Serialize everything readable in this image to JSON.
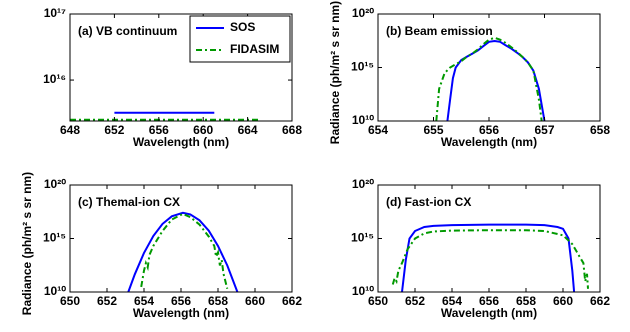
{
  "chart_data": [
    {
      "type": "line",
      "title": "(a) VB continuum",
      "log_y": true,
      "legend": "upper right",
      "xlabel": "Wavelength (nm)",
      "xlim": [
        648,
        668
      ],
      "xticks": [
        648,
        652,
        656,
        660,
        664,
        668
      ],
      "ylim": [
        2400000000000000.0,
        1e+17
      ],
      "yticks": [
        {
          "value": 1e+16,
          "label": "10¹⁶"
        },
        {
          "value": 1e+17,
          "label": "10¹⁷"
        }
      ],
      "series": [
        {
          "name": "SOS",
          "color": "#0000ff",
          "dash": "solid",
          "x": [
            652,
            661
          ],
          "values": [
            3200000000000000.0,
            3200000000000000.0
          ]
        },
        {
          "name": "FIDASIM",
          "color": "#009900",
          "dash": "dash-dot",
          "x": [
            648,
            665
          ],
          "values": [
            2500000000000000.0,
            2500000000000000.0
          ]
        }
      ]
    },
    {
      "type": "line",
      "title": "(b) Beam emission",
      "log_y": true,
      "xlabel": "Wavelength (nm)",
      "ylabel": "Radiance (ph/m² s sr nm)",
      "xlim": [
        654,
        658
      ],
      "xticks": [
        654,
        655,
        656,
        657,
        658
      ],
      "ylim": [
        10000000000.0,
        1e+20
      ],
      "yticks": [
        {
          "value": 10000000000.0,
          "label": "10¹⁰"
        },
        {
          "value": 1000000000000000.0,
          "label": "10¹⁵"
        },
        {
          "value": 1e+20,
          "label": "10²⁰"
        }
      ],
      "series": [
        {
          "color": "#0000ff",
          "dash": "solid",
          "x": [
            655.25,
            655.3,
            655.35,
            655.4,
            655.5,
            655.6,
            655.7,
            655.8,
            655.9,
            656.0,
            656.1,
            656.2,
            656.3,
            656.4,
            656.5,
            656.6,
            656.7,
            656.8,
            656.9,
            657.0
          ],
          "values": [
            10000000000.0,
            1000000000000.0,
            100000000000000.0,
            1000000000000000.0,
            5000000000000000.0,
            1e+16,
            2e+16,
            4e+16,
            1e+17,
            2.5e+17,
            3e+17,
            2.5e+17,
            1.2e+17,
            6e+16,
            2.5e+16,
            1e+16,
            3000000000000000.0,
            500000000000000.0,
            10000000000000.0,
            10000000000.0
          ]
        },
        {
          "color": "#009900",
          "dash": "dash-dot",
          "x": [
            655.05,
            655.1,
            655.2,
            655.3,
            655.4,
            655.5,
            655.6,
            655.7,
            655.8,
            655.9,
            656.0,
            656.1,
            656.2,
            656.3,
            656.4,
            656.5,
            656.6,
            656.7,
            656.8,
            656.9,
            656.95
          ],
          "values": [
            10000000000.0,
            10000000000000.0,
            300000000000000.0,
            1000000000000000.0,
            2000000000000000.0,
            4000000000000000.0,
            1e+16,
            2e+16,
            5e+16,
            1.5e+17,
            4e+17,
            6e+17,
            4e+17,
            2e+17,
            8e+16,
            3e+16,
            1e+16,
            3000000000000000.0,
            500000000000000.0,
            1000000000000.0,
            10000000000.0
          ]
        }
      ]
    },
    {
      "type": "line",
      "title": "(c) Themal-ion CX",
      "log_y": true,
      "xlabel": "Wavelength (nm)",
      "ylabel": "Radiance (ph/m² s sr nm)",
      "xlim": [
        650,
        662
      ],
      "xticks": [
        650,
        652,
        654,
        656,
        658,
        660,
        662
      ],
      "ylim": [
        10000000000.0,
        1e+20
      ],
      "yticks": [
        {
          "value": 10000000000.0,
          "label": "10¹⁰"
        },
        {
          "value": 1000000000000000.0,
          "label": "10¹⁵"
        },
        {
          "value": 1e+20,
          "label": "10²⁰"
        }
      ],
      "series": [
        {
          "color": "#0000ff",
          "dash": "solid",
          "x": [
            653.15,
            653.5,
            654,
            654.5,
            655,
            655.5,
            656.1,
            656.5,
            657,
            657.5,
            658,
            658.5,
            659.05
          ],
          "values": [
            10000000000.0,
            450000000000.0,
            45000000000000.0,
            1700000000000000.0,
            2.3e+16,
            1.2e+17,
            2.5e+17,
            1.8e+17,
            5e+16,
            5400000000000000.0,
            200000000000000.0,
            3000000000000.0,
            10000000000.0
          ]
        },
        {
          "color": "#009900",
          "dash": "dash-dot",
          "x": [
            653.85,
            654.0,
            654.1,
            654.2,
            654.3,
            654.5,
            655,
            655.5,
            656.1,
            656.5,
            657,
            657.5,
            657.8,
            657.9,
            658.0,
            658.1,
            658.2,
            658.3,
            658.5
          ],
          "values": [
            30000000000.0,
            1000000000000.0,
            5000000000000.0,
            2000000000000.0,
            30000000000000.0,
            200000000000000.0,
            5000000000000000.0,
            6e+16,
            2e+17,
            1e+17,
            2e+16,
            1500000000000000.0,
            200000000000000.0,
            20000000000000.0,
            50000000000000.0,
            3000000000000.0,
            10000000000000.0,
            500000000000.0,
            20000000000.0
          ]
        }
      ]
    },
    {
      "type": "line",
      "title": "(d) Fast-ion CX",
      "log_y": true,
      "xlabel": "Wavelength (nm)",
      "xlim": [
        650,
        662
      ],
      "xticks": [
        650,
        652,
        654,
        656,
        658,
        660,
        662
      ],
      "ylim": [
        10000000000.0,
        1e+20
      ],
      "yticks": [
        {
          "value": 10000000000.0,
          "label": "10¹⁰"
        },
        {
          "value": 1000000000000000.0,
          "label": "10¹⁵"
        },
        {
          "value": 1e+20,
          "label": "10²⁰"
        }
      ],
      "series": [
        {
          "color": "#0000ff",
          "dash": "solid",
          "x": [
            651.3,
            651.5,
            651.7,
            652,
            652.5,
            653,
            654,
            656,
            658,
            659,
            659.7,
            660,
            660.3,
            660.5,
            660.6
          ],
          "values": [
            10000000000.0,
            10000000000000.0,
            1000000000000000.0,
            5000000000000000.0,
            1.2e+16,
            1.5e+16,
            1.8e+16,
            2e+16,
            2e+16,
            1.8e+16,
            1.2e+16,
            8000000000000000.0,
            1000000000000000.0,
            1000000000000.0,
            10000000000.0
          ]
        },
        {
          "color": "#009900",
          "dash": "dash-dot",
          "x": [
            650.8,
            650.9,
            651.0,
            651.1,
            651.3,
            651.6,
            652,
            652.5,
            653,
            654,
            656,
            658,
            659,
            660,
            660.5,
            660.9,
            661.1,
            661.2,
            661.3,
            661.35
          ],
          "values": [
            50000000000.0,
            200000000000.0,
            100000000000.0,
            1000000000000.0,
            5000000000000.0,
            100000000000000.0,
            1000000000000000.0,
            3000000000000000.0,
            4500000000000000.0,
            5500000000000000.0,
            6000000000000000.0,
            6000000000000000.0,
            5000000000000000.0,
            2000000000000000.0,
            300000000000000.0,
            20000000000000.0,
            5000000000000.0,
            100000000000.0,
            500000000000.0,
            20000000000.0
          ]
        }
      ]
    }
  ]
}
